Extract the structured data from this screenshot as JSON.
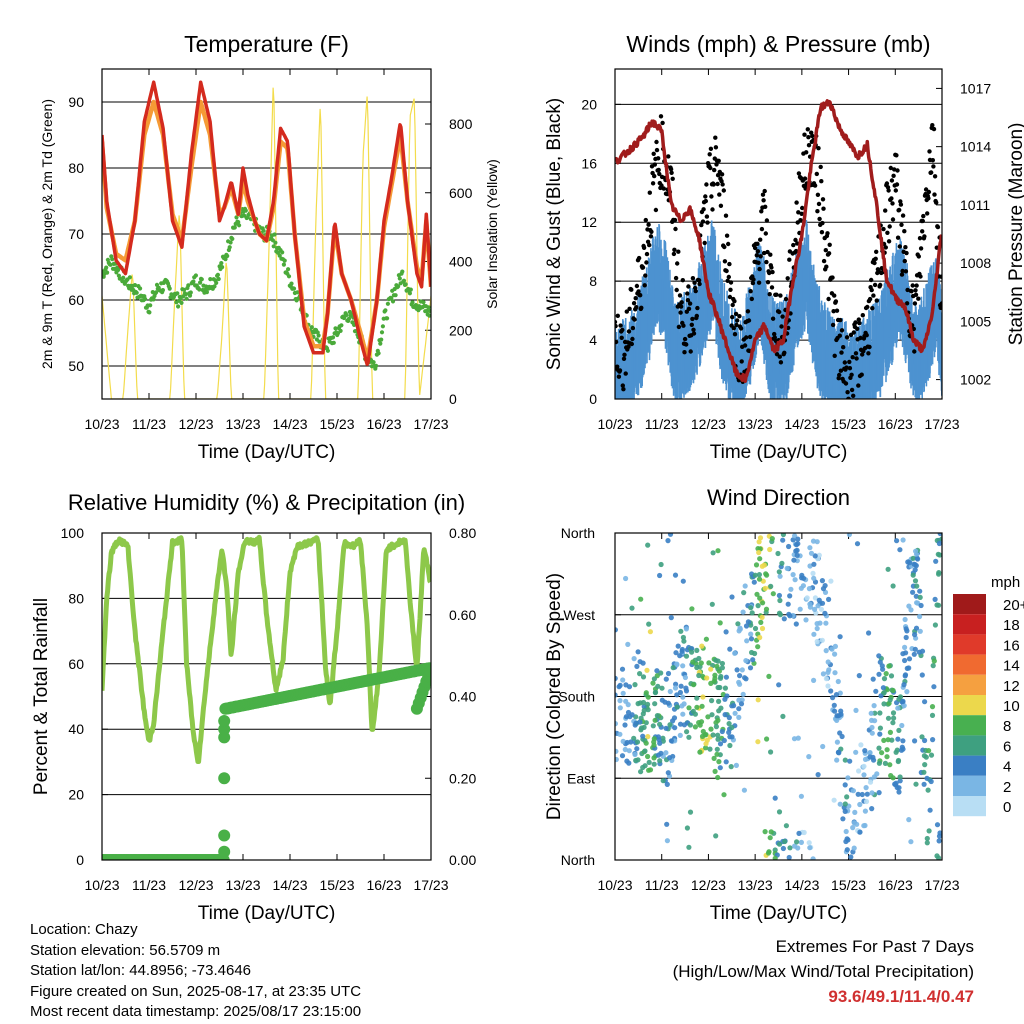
{
  "x_ticks": [
    "10/23",
    "11/23",
    "12/23",
    "13/23",
    "14/23",
    "15/23",
    "16/23",
    "17/23"
  ],
  "x_title": "Time (Day/UTC)",
  "colors": {
    "temp_2m": "#d42a1e",
    "temp_9m": "#f59a35",
    "dewpoint": "#4aaa3a",
    "solar": "#f3dc4c",
    "wind": "#4d92d0",
    "gust": "#000000",
    "pressure": "#a01c1c",
    "rh": "#8dc84a",
    "precip": "#49b047"
  },
  "chart_data": [
    {
      "id": "temperature",
      "type": "line",
      "title": "Temperature (F)",
      "ylabel": "2m & 9m T (Red, Orange) & 2m Td (Green)",
      "y2label": "Solar Insolation (Yellow)",
      "ylim": [
        45,
        95
      ],
      "yticks": [
        50,
        60,
        70,
        80,
        90
      ],
      "y2lim": [
        0,
        960
      ],
      "y2ticks": [
        0,
        200,
        400,
        600,
        800
      ],
      "xlim": [
        0,
        7
      ],
      "grid": true,
      "series": [
        {
          "name": "2m T",
          "axis": "left",
          "x": [
            0,
            0.1,
            0.3,
            0.5,
            0.7,
            0.9,
            1.1,
            1.3,
            1.5,
            1.7,
            1.9,
            2.1,
            2.3,
            2.5,
            2.6,
            2.75,
            2.9,
            3.0,
            3.1,
            3.25,
            3.35,
            3.5,
            3.65,
            3.8,
            3.95,
            4.1,
            4.3,
            4.5,
            4.7,
            4.8,
            4.95,
            5.1,
            5.3,
            5.5,
            5.65,
            5.85,
            6.0,
            6.15,
            6.35,
            6.5,
            6.7,
            6.8,
            6.9,
            7.0
          ],
          "y": [
            85,
            75,
            66,
            64,
            72,
            87,
            93,
            86,
            72,
            68,
            82,
            93,
            87,
            72,
            74,
            78,
            73,
            80,
            76,
            72,
            70,
            69,
            75,
            86,
            84,
            70,
            56,
            52,
            52,
            58,
            72,
            64,
            60,
            54,
            50,
            60,
            72,
            78,
            87,
            75,
            64,
            62,
            73,
            62
          ]
        },
        {
          "name": "9m T",
          "axis": "left",
          "x": [
            0,
            0.1,
            0.3,
            0.5,
            0.7,
            0.9,
            1.1,
            1.3,
            1.5,
            1.7,
            1.9,
            2.1,
            2.3,
            2.5,
            2.6,
            2.75,
            2.9,
            3.0,
            3.1,
            3.25,
            3.35,
            3.5,
            3.65,
            3.8,
            3.95,
            4.1,
            4.3,
            4.5,
            4.7,
            4.8,
            4.95,
            5.1,
            5.3,
            5.5,
            5.65,
            5.85,
            6.0,
            6.15,
            6.35,
            6.5,
            6.7,
            6.8,
            6.9,
            7.0
          ],
          "y": [
            84,
            74,
            67,
            66,
            72,
            85,
            90,
            85,
            73,
            69,
            80,
            90,
            85,
            73,
            74,
            77,
            73,
            78,
            75,
            72,
            70,
            69,
            74,
            84,
            83,
            70,
            57,
            53,
            53,
            58,
            71,
            64,
            60,
            55,
            51,
            60,
            71,
            77,
            85,
            75,
            65,
            63,
            72,
            62
          ]
        },
        {
          "name": "2m Td",
          "axis": "left",
          "x": [
            0,
            0.2,
            0.5,
            0.8,
            1.0,
            1.2,
            1.4,
            1.6,
            1.8,
            2.0,
            2.2,
            2.4,
            2.6,
            2.8,
            3.0,
            3.2,
            3.4,
            3.6,
            3.8,
            4.0,
            4.2,
            4.4,
            4.6,
            4.8,
            5.0,
            5.2,
            5.4,
            5.6,
            5.8,
            6.0,
            6.2,
            6.4,
            6.6,
            6.8,
            7.0
          ],
          "y": [
            64,
            66,
            63,
            61,
            59,
            62,
            62,
            60,
            61,
            63,
            62,
            63,
            66,
            71,
            73,
            72,
            70,
            70,
            67,
            63,
            60,
            56,
            54,
            53,
            55,
            58,
            56,
            52,
            50,
            57,
            61,
            64,
            60,
            59,
            58
          ]
        },
        {
          "name": "Solar",
          "axis": "right",
          "x": [
            0,
            0.2,
            0.45,
            0.55,
            0.65,
            0.75,
            1.2,
            1.45,
            1.55,
            1.65,
            1.75,
            2.2,
            2.45,
            2.55,
            2.65,
            2.75,
            3.2,
            3.45,
            3.55,
            3.65,
            3.75,
            4.2,
            4.45,
            4.55,
            4.65,
            4.75,
            5.2,
            5.45,
            5.55,
            5.65,
            5.75,
            6.2,
            6.45,
            6.55,
            6.65,
            6.75,
            7.0
          ],
          "y": [
            300,
            0,
            0,
            200,
            380,
            0,
            0,
            0,
            300,
            560,
            0,
            0,
            0,
            180,
            420,
            0,
            0,
            0,
            420,
            960,
            0,
            0,
            0,
            520,
            880,
            0,
            0,
            0,
            700,
            900,
            0,
            0,
            0,
            820,
            880,
            0,
            300
          ]
        }
      ]
    },
    {
      "id": "winds",
      "type": "scatter",
      "title": "Winds (mph) & Pressure (mb)",
      "ylabel": "Sonic Wind & Gust (Blue, Black)",
      "y2label": "Station Pressure (Maroon)",
      "ylim": [
        0,
        22.4
      ],
      "yticks": [
        0,
        4,
        8,
        12,
        16,
        20
      ],
      "y2lim": [
        1001,
        1018
      ],
      "y2ticks": [
        1002,
        1005,
        1008,
        1011,
        1014,
        1017
      ],
      "xlim": [
        0,
        7
      ],
      "grid": true,
      "series": [
        {
          "name": "Wind",
          "axis": "left",
          "x": [
            0,
            0.3,
            0.5,
            0.7,
            0.9,
            1.1,
            1.3,
            1.5,
            1.7,
            1.9,
            2.1,
            2.3,
            2.5,
            2.7,
            2.9,
            3.1,
            3.3,
            3.5,
            3.7,
            3.9,
            4.1,
            4.3,
            4.5,
            4.7,
            4.9,
            5.1,
            5.3,
            5.5,
            5.7,
            5.9,
            6.1,
            6.3,
            6.5,
            6.7,
            6.9,
            7.0
          ],
          "y": [
            2,
            2,
            4,
            6,
            9,
            7,
            3,
            4,
            5,
            7,
            9,
            5,
            3,
            2,
            5,
            8,
            4,
            3,
            4,
            7,
            9,
            5,
            3,
            2,
            2,
            1,
            2,
            3,
            4,
            6,
            8,
            5,
            3,
            5,
            7,
            3
          ]
        },
        {
          "name": "Gust",
          "axis": "left",
          "x": [
            0,
            0.2,
            0.4,
            0.6,
            0.8,
            1.0,
            1.2,
            1.4,
            1.6,
            1.8,
            2.0,
            2.2,
            2.4,
            2.6,
            2.8,
            3.0,
            3.2,
            3.4,
            3.6,
            3.8,
            4.0,
            4.2,
            4.4,
            4.6,
            4.8,
            5.0,
            5.2,
            5.4,
            5.6,
            5.8,
            6.0,
            6.2,
            6.4,
            6.6,
            6.8,
            7.0
          ],
          "y": [
            4,
            3,
            6,
            9,
            14,
            17,
            14,
            6,
            5,
            9,
            14,
            16,
            10,
            4,
            3,
            9,
            12,
            6,
            4,
            9,
            15,
            17,
            14,
            8,
            3,
            2,
            3,
            5,
            8,
            12,
            15,
            9,
            5,
            12,
            18,
            6
          ]
        },
        {
          "name": "Pressure",
          "axis": "right",
          "x": [
            0,
            0.3,
            0.6,
            0.8,
            1.0,
            1.2,
            1.4,
            1.6,
            1.8,
            2.0,
            2.2,
            2.4,
            2.6,
            2.8,
            3.0,
            3.2,
            3.4,
            3.6,
            3.8,
            4.0,
            4.2,
            4.4,
            4.6,
            4.8,
            5.0,
            5.2,
            5.4,
            5.6,
            5.8,
            6.0,
            6.2,
            6.4,
            6.6,
            6.8,
            7.0
          ],
          "y": [
            1013.2,
            1013.8,
            1014.5,
            1015.3,
            1014.8,
            1011,
            1010.2,
            1010.8,
            1009.3,
            1006.5,
            1005.2,
            1003.7,
            1002.3,
            1002,
            1004,
            1004.8,
            1003.5,
            1004,
            1007,
            1009.4,
            1013,
            1016,
            1016.3,
            1015,
            1014.2,
            1013.5,
            1014.1,
            1011,
            1007.3,
            1006.2,
            1005.8,
            1004,
            1003.5,
            1005.5,
            1009.8
          ]
        }
      ]
    },
    {
      "id": "humidity",
      "type": "line",
      "title": "Relative Humidity (%) & Precipitation (in)",
      "ylabel": "Percent & Total Rainfall",
      "ylim": [
        0,
        100
      ],
      "yticks": [
        0,
        20,
        40,
        60,
        80,
        100
      ],
      "y2lim": [
        0,
        0.8
      ],
      "y2ticks": [
        0.0,
        0.2,
        0.4,
        0.6,
        0.8
      ],
      "y2ticklabels": [
        "0.00",
        "0.20",
        "0.40",
        "0.60",
        "0.80"
      ],
      "xlim": [
        0,
        7
      ],
      "grid": true,
      "series": [
        {
          "name": "RH",
          "axis": "left",
          "x": [
            0,
            0.1,
            0.2,
            0.35,
            0.55,
            0.7,
            0.9,
            1.0,
            1.1,
            1.3,
            1.5,
            1.7,
            1.8,
            1.95,
            2.05,
            2.2,
            2.4,
            2.55,
            2.65,
            2.75,
            2.9,
            3.05,
            3.2,
            3.35,
            3.5,
            3.7,
            3.85,
            4.0,
            4.15,
            4.4,
            4.6,
            4.75,
            4.85,
            5.0,
            5.15,
            5.35,
            5.5,
            5.65,
            5.75,
            5.9,
            6.05,
            6.3,
            6.45,
            6.55,
            6.7,
            6.85,
            7.0
          ],
          "y": [
            52,
            80,
            94,
            98,
            96,
            70,
            45,
            36,
            42,
            70,
            97,
            98,
            60,
            38,
            30,
            52,
            78,
            95,
            84,
            62,
            88,
            98,
            97,
            98,
            75,
            52,
            61,
            88,
            96,
            97,
            98,
            60,
            47,
            70,
            97,
            96,
            98,
            70,
            38,
            58,
            95,
            97,
            98,
            80,
            58,
            96,
            84
          ]
        },
        {
          "name": "Precipitation",
          "axis": "right",
          "x": [
            0,
            2.6,
            2.6,
            2.63,
            2.63,
            7.0
          ],
          "y": [
            0,
            0,
            0.37,
            0.37,
            0.37,
            0.47
          ]
        }
      ]
    },
    {
      "id": "wind_direction",
      "type": "scatter",
      "title": "Wind Direction",
      "ylabel": "Direction (Colored By Speed)",
      "yticklabels": [
        "North",
        "East",
        "South",
        "West",
        "North"
      ],
      "ylim": [
        0,
        360
      ],
      "xlim": [
        0,
        7
      ],
      "grid": true,
      "legend_title": "mph",
      "legend_labels": [
        "20+",
        "18",
        "16",
        "14",
        "12",
        "10",
        "8",
        "6",
        "4",
        "2",
        "0"
      ],
      "legend_colors": [
        "#a01a1a",
        "#c82020",
        "#e03a2a",
        "#f06a30",
        "#f5a040",
        "#ecd84c",
        "#48b050",
        "#3ea080",
        "#3a7fc4",
        "#7ab6e4",
        "#b8def4"
      ],
      "legend_placement": "right",
      "series": [
        {
          "name": "Direction",
          "x": [
            0.3,
            0.5,
            0.7,
            0.9,
            1.1,
            1.3,
            1.5,
            1.7,
            1.9,
            2.1,
            2.3,
            2.5,
            2.7,
            2.9,
            3.1,
            3.3,
            3.5,
            3.7,
            3.9,
            4.1,
            4.3,
            4.5,
            4.7,
            4.9,
            5.1,
            5.3,
            5.5,
            5.7,
            5.9,
            6.1,
            6.3,
            6.5,
            6.7,
            6.9
          ],
          "y": [
            160,
            170,
            150,
            160,
            140,
            190,
            200,
            180,
            175,
            165,
            160,
            150,
            230,
            260,
            300,
            340,
            330,
            320,
            330,
            340,
            300,
            250,
            200,
            60,
            40,
            80,
            110,
            170,
            150,
            130,
            270,
            290,
            20,
            340
          ],
          "speed": [
            3,
            5,
            8,
            6,
            4,
            3,
            4,
            7,
            9,
            8,
            6,
            4,
            3,
            4,
            9,
            8,
            5,
            4,
            3,
            2,
            2,
            2,
            3,
            4,
            3,
            2,
            3,
            6,
            7,
            4,
            3,
            4,
            6,
            5
          ]
        }
      ]
    }
  ],
  "station": {
    "location": "Location: Chazy",
    "elevation": "Station elevation: 56.5709 m",
    "latlon": "Station lat/lon: 44.8956; -73.4646",
    "created": "Figure created on Sun, 2025-08-17, at 23:35 UTC",
    "recent": "Most recent data timestamp: 2025/08/17 23:15:00"
  },
  "extremes": {
    "title": "Extremes For Past 7 Days",
    "subtitle": "(High/Low/Max Wind/Total Precipitation)",
    "values": "93.6/49.1/11.4/0.47"
  }
}
